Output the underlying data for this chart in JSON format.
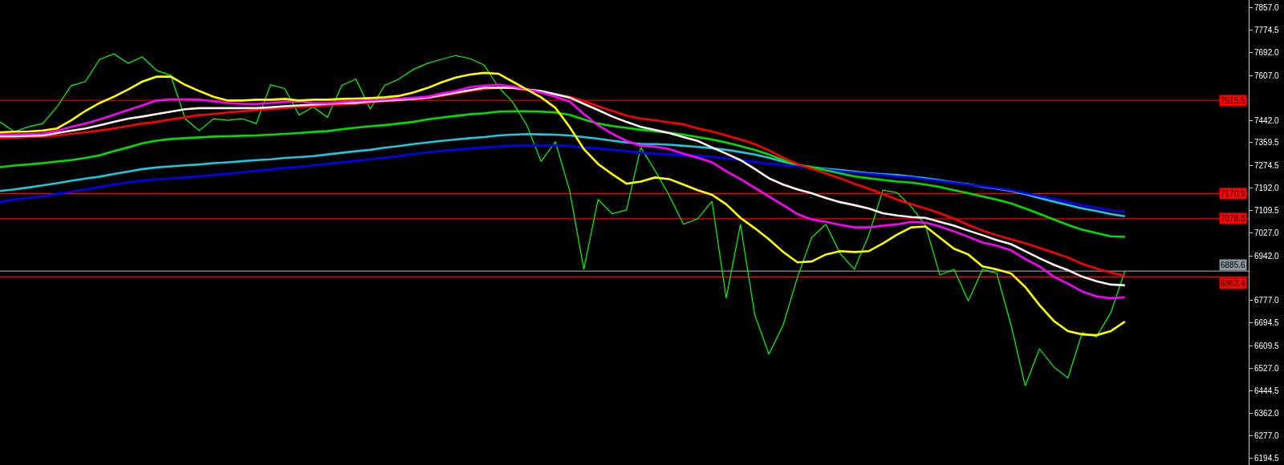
{
  "chart_data": {
    "type": "line",
    "categories": [
      null,
      null,
      null,
      null,
      null,
      null,
      null,
      null,
      null,
      null,
      null,
      null,
      null,
      null,
      null,
      null,
      null,
      null,
      null,
      null,
      null,
      null,
      null,
      null,
      null,
      null,
      null,
      null,
      null,
      null,
      null,
      null,
      null,
      null,
      null,
      null,
      null,
      null,
      null,
      null,
      null,
      null,
      null,
      null,
      null,
      null,
      null,
      null,
      null,
      null,
      null,
      null,
      null,
      null,
      null,
      null,
      null,
      null,
      null,
      null,
      null,
      null,
      null,
      null,
      null,
      null,
      null,
      null,
      null,
      null,
      null,
      null,
      null,
      null,
      null,
      null,
      null,
      null,
      null,
      null
    ],
    "series": [
      {
        "color": "#00ff00",
        "values": [
          7436,
          7400,
          7418,
          7430,
          7491,
          7570,
          7585,
          7667,
          7687,
          7652,
          7676,
          7626,
          7608,
          7448,
          7404,
          7448,
          7442,
          7448,
          7430,
          7573,
          7559,
          7462,
          7491,
          7453,
          7570,
          7594,
          7483,
          7570,
          7594,
          7629,
          7652,
          7667,
          7681,
          7670,
          7646,
          7565,
          7509,
          7424,
          7290,
          7363,
          7184,
          6892,
          7150,
          7097,
          7111,
          7342,
          7257,
          7164,
          7058,
          7079,
          7143,
          6786,
          7058,
          6725,
          6579,
          6687,
          6862,
          7009,
          7058,
          6950,
          6892,
          7017,
          7184,
          7175,
          7123,
          7053,
          6871,
          6892,
          6775,
          6892,
          6877,
          6687,
          6462,
          6599,
          6532,
          6491,
          6658,
          6643,
          6731,
          6886
        ]
      },
      {
        "color": "#1ec8dc",
        "values": [
          7181,
          7187,
          7194,
          7202,
          7210,
          7219,
          7227,
          7234,
          7244,
          7253,
          7262,
          7268,
          7272,
          7276,
          7279,
          7284,
          7287,
          7291,
          7295,
          7298,
          7303,
          7306,
          7310,
          7316,
          7322,
          7328,
          7333,
          7341,
          7347,
          7354,
          7360,
          7366,
          7371,
          7376,
          7380,
          7386,
          7389,
          7391,
          7390,
          7389,
          7386,
          7380,
          7374,
          7367,
          7360,
          7355,
          7354,
          7352,
          7348,
          7344,
          7339,
          7333,
          7325,
          7316,
          7304,
          7289,
          7278,
          7269,
          7263,
          7259,
          7253,
          7247,
          7243,
          7240,
          7234,
          7228,
          7221,
          7213,
          7206,
          7197,
          7190,
          7181,
          7170,
          7155,
          7142,
          7129,
          7117,
          7107,
          7096,
          7088
        ]
      },
      {
        "color": "#0000ff",
        "values": [
          7140,
          7149,
          7155,
          7161,
          7170,
          7178,
          7187,
          7196,
          7205,
          7213,
          7219,
          7224,
          7227,
          7231,
          7235,
          7240,
          7244,
          7250,
          7256,
          7260,
          7266,
          7270,
          7275,
          7281,
          7287,
          7292,
          7298,
          7304,
          7310,
          7317,
          7323,
          7329,
          7333,
          7338,
          7342,
          7345,
          7348,
          7349,
          7349,
          7349,
          7347,
          7342,
          7338,
          7333,
          7328,
          7322,
          7319,
          7316,
          7313,
          7311,
          7307,
          7301,
          7295,
          7288,
          7282,
          7276,
          7272,
          7266,
          7260,
          7254,
          7249,
          7244,
          7240,
          7235,
          7231,
          7224,
          7218,
          7211,
          7205,
          7199,
          7192,
          7184,
          7174,
          7162,
          7152,
          7140,
          7128,
          7119,
          7110,
          7104
        ]
      },
      {
        "color": "#00e000",
        "values": [
          7269,
          7275,
          7279,
          7284,
          7290,
          7295,
          7303,
          7313,
          7328,
          7342,
          7357,
          7367,
          7373,
          7376,
          7379,
          7382,
          7383,
          7385,
          7386,
          7389,
          7392,
          7395,
          7399,
          7402,
          7409,
          7415,
          7420,
          7424,
          7430,
          7436,
          7445,
          7452,
          7458,
          7464,
          7468,
          7474,
          7475,
          7475,
          7474,
          7471,
          7462,
          7445,
          7430,
          7421,
          7414,
          7407,
          7402,
          7396,
          7389,
          7380,
          7371,
          7360,
          7347,
          7333,
          7316,
          7295,
          7279,
          7269,
          7257,
          7246,
          7235,
          7228,
          7222,
          7216,
          7212,
          7205,
          7196,
          7184,
          7173,
          7161,
          7149,
          7135,
          7117,
          7097,
          7076,
          7056,
          7038,
          7026,
          7014,
          7012
        ]
      },
      {
        "color": "#ff0000",
        "values": [
          7376,
          7377,
          7380,
          7382,
          7386,
          7392,
          7398,
          7404,
          7412,
          7421,
          7430,
          7436,
          7445,
          7453,
          7461,
          7465,
          7471,
          7475,
          7480,
          7483,
          7487,
          7491,
          7493,
          7496,
          7500,
          7503,
          7507,
          7512,
          7515,
          7519,
          7524,
          7532,
          7540,
          7550,
          7557,
          7562,
          7560,
          7554,
          7547,
          7538,
          7529,
          7513,
          7494,
          7477,
          7459,
          7448,
          7442,
          7434,
          7427,
          7412,
          7401,
          7386,
          7371,
          7354,
          7331,
          7304,
          7281,
          7263,
          7246,
          7228,
          7208,
          7190,
          7170,
          7149,
          7132,
          7117,
          7099,
          7079,
          7056,
          7035,
          7018,
          7003,
          6988,
          6971,
          6953,
          6936,
          6912,
          6895,
          6880,
          6868
        ]
      },
      {
        "color": "#fff0f0",
        "values": [
          7383,
          7383,
          7385,
          7386,
          7395,
          7404,
          7412,
          7424,
          7436,
          7448,
          7456,
          7465,
          7474,
          7483,
          7487,
          7487,
          7487,
          7487,
          7487,
          7490,
          7494,
          7497,
          7500,
          7503,
          7506,
          7507,
          7512,
          7515,
          7518,
          7521,
          7526,
          7535,
          7544,
          7553,
          7562,
          7562,
          7562,
          7556,
          7550,
          7538,
          7526,
          7503,
          7480,
          7456,
          7436,
          7418,
          7407,
          7395,
          7380,
          7366,
          7342,
          7319,
          7295,
          7263,
          7228,
          7205,
          7187,
          7173,
          7155,
          7140,
          7129,
          7117,
          7099,
          7091,
          7085,
          7082,
          7067,
          7053,
          7035,
          7018,
          7000,
          6985,
          6959,
          6933,
          6909,
          6889,
          6865,
          6848,
          6836,
          6833
        ]
      },
      {
        "color": "#ff00ff",
        "values": [
          7390,
          7390,
          7391,
          7393,
          7403,
          7418,
          7430,
          7445,
          7462,
          7480,
          7497,
          7515,
          7519,
          7519,
          7518,
          7512,
          7506,
          7503,
          7502,
          7506,
          7510,
          7512,
          7506,
          7506,
          7510,
          7513,
          7516,
          7519,
          7522,
          7525,
          7529,
          7541,
          7550,
          7564,
          7570,
          7573,
          7567,
          7556,
          7544,
          7529,
          7512,
          7465,
          7424,
          7392,
          7366,
          7348,
          7345,
          7336,
          7319,
          7304,
          7287,
          7254,
          7225,
          7193,
          7161,
          7129,
          7096,
          7076,
          7067,
          7056,
          7047,
          7047,
          7053,
          7058,
          7067,
          7064,
          7050,
          7032,
          7012,
          6991,
          6979,
          6962,
          6930,
          6903,
          6865,
          6839,
          6810,
          6792,
          6785,
          6789
        ]
      },
      {
        "color": "#ffff00",
        "values": [
          7398,
          7400,
          7401,
          7404,
          7412,
          7442,
          7477,
          7506,
          7529,
          7556,
          7585,
          7603,
          7603,
          7573,
          7550,
          7529,
          7515,
          7515,
          7518,
          7518,
          7521,
          7515,
          7518,
          7518,
          7521,
          7522,
          7524,
          7527,
          7532,
          7544,
          7561,
          7582,
          7600,
          7611,
          7617,
          7614,
          7585,
          7556,
          7527,
          7488,
          7418,
          7336,
          7281,
          7243,
          7208,
          7216,
          7231,
          7225,
          7205,
          7184,
          7167,
          7132,
          7082,
          7044,
          7003,
          6956,
          6918,
          6921,
          6947,
          6959,
          6956,
          6959,
          6988,
          7020,
          7047,
          7050,
          7009,
          6968,
          6947,
          6903,
          6892,
          6877,
          6827,
          6760,
          6702,
          6664,
          6652,
          6649,
          6664,
          6699
        ]
      }
    ],
    "ylim": [
      6170,
      7886
    ],
    "yticks": [
      {
        "value": 7857,
        "label": "7857.0"
      },
      7774.5,
      {
        "value": 7692,
        "label": "7692.0"
      },
      {
        "value": 7607,
        "label": "7607.0"
      },
      {
        "value": 7442,
        "label": "7442.0"
      },
      7359.5,
      7274.5,
      {
        "value": 7192,
        "label": "7192.0"
      },
      7109.5,
      {
        "value": 7027,
        "label": "7027.0"
      },
      {
        "value": 6942,
        "label": "6942.0"
      },
      {
        "value": 6777,
        "label": "6777.0"
      },
      6694.5,
      6609.5,
      {
        "value": 6527,
        "label": "6527.0"
      },
      6444.5,
      {
        "value": 6362,
        "label": "6362.0"
      },
      {
        "value": 6277,
        "label": "6277.0"
      },
      6194.5
    ],
    "ref_lines": [
      {
        "axis": "y",
        "value": 7515.5,
        "label": "7515.5",
        "color": "#ff0000"
      },
      {
        "axis": "y",
        "value": 7170.9,
        "label": "7170.9",
        "color": "#ff0000"
      },
      {
        "axis": "y",
        "value": 7078.8,
        "label": "7078.8",
        "color": "#ff0000"
      },
      {
        "axis": "y",
        "value": 6885.6,
        "label": "6885.6",
        "color": "#8a96a0"
      },
      {
        "axis": "y",
        "value": 6863.4,
        "label": "6863.4",
        "color": "#ff0000"
      }
    ],
    "grid": false,
    "tick_labels": "y"
  }
}
